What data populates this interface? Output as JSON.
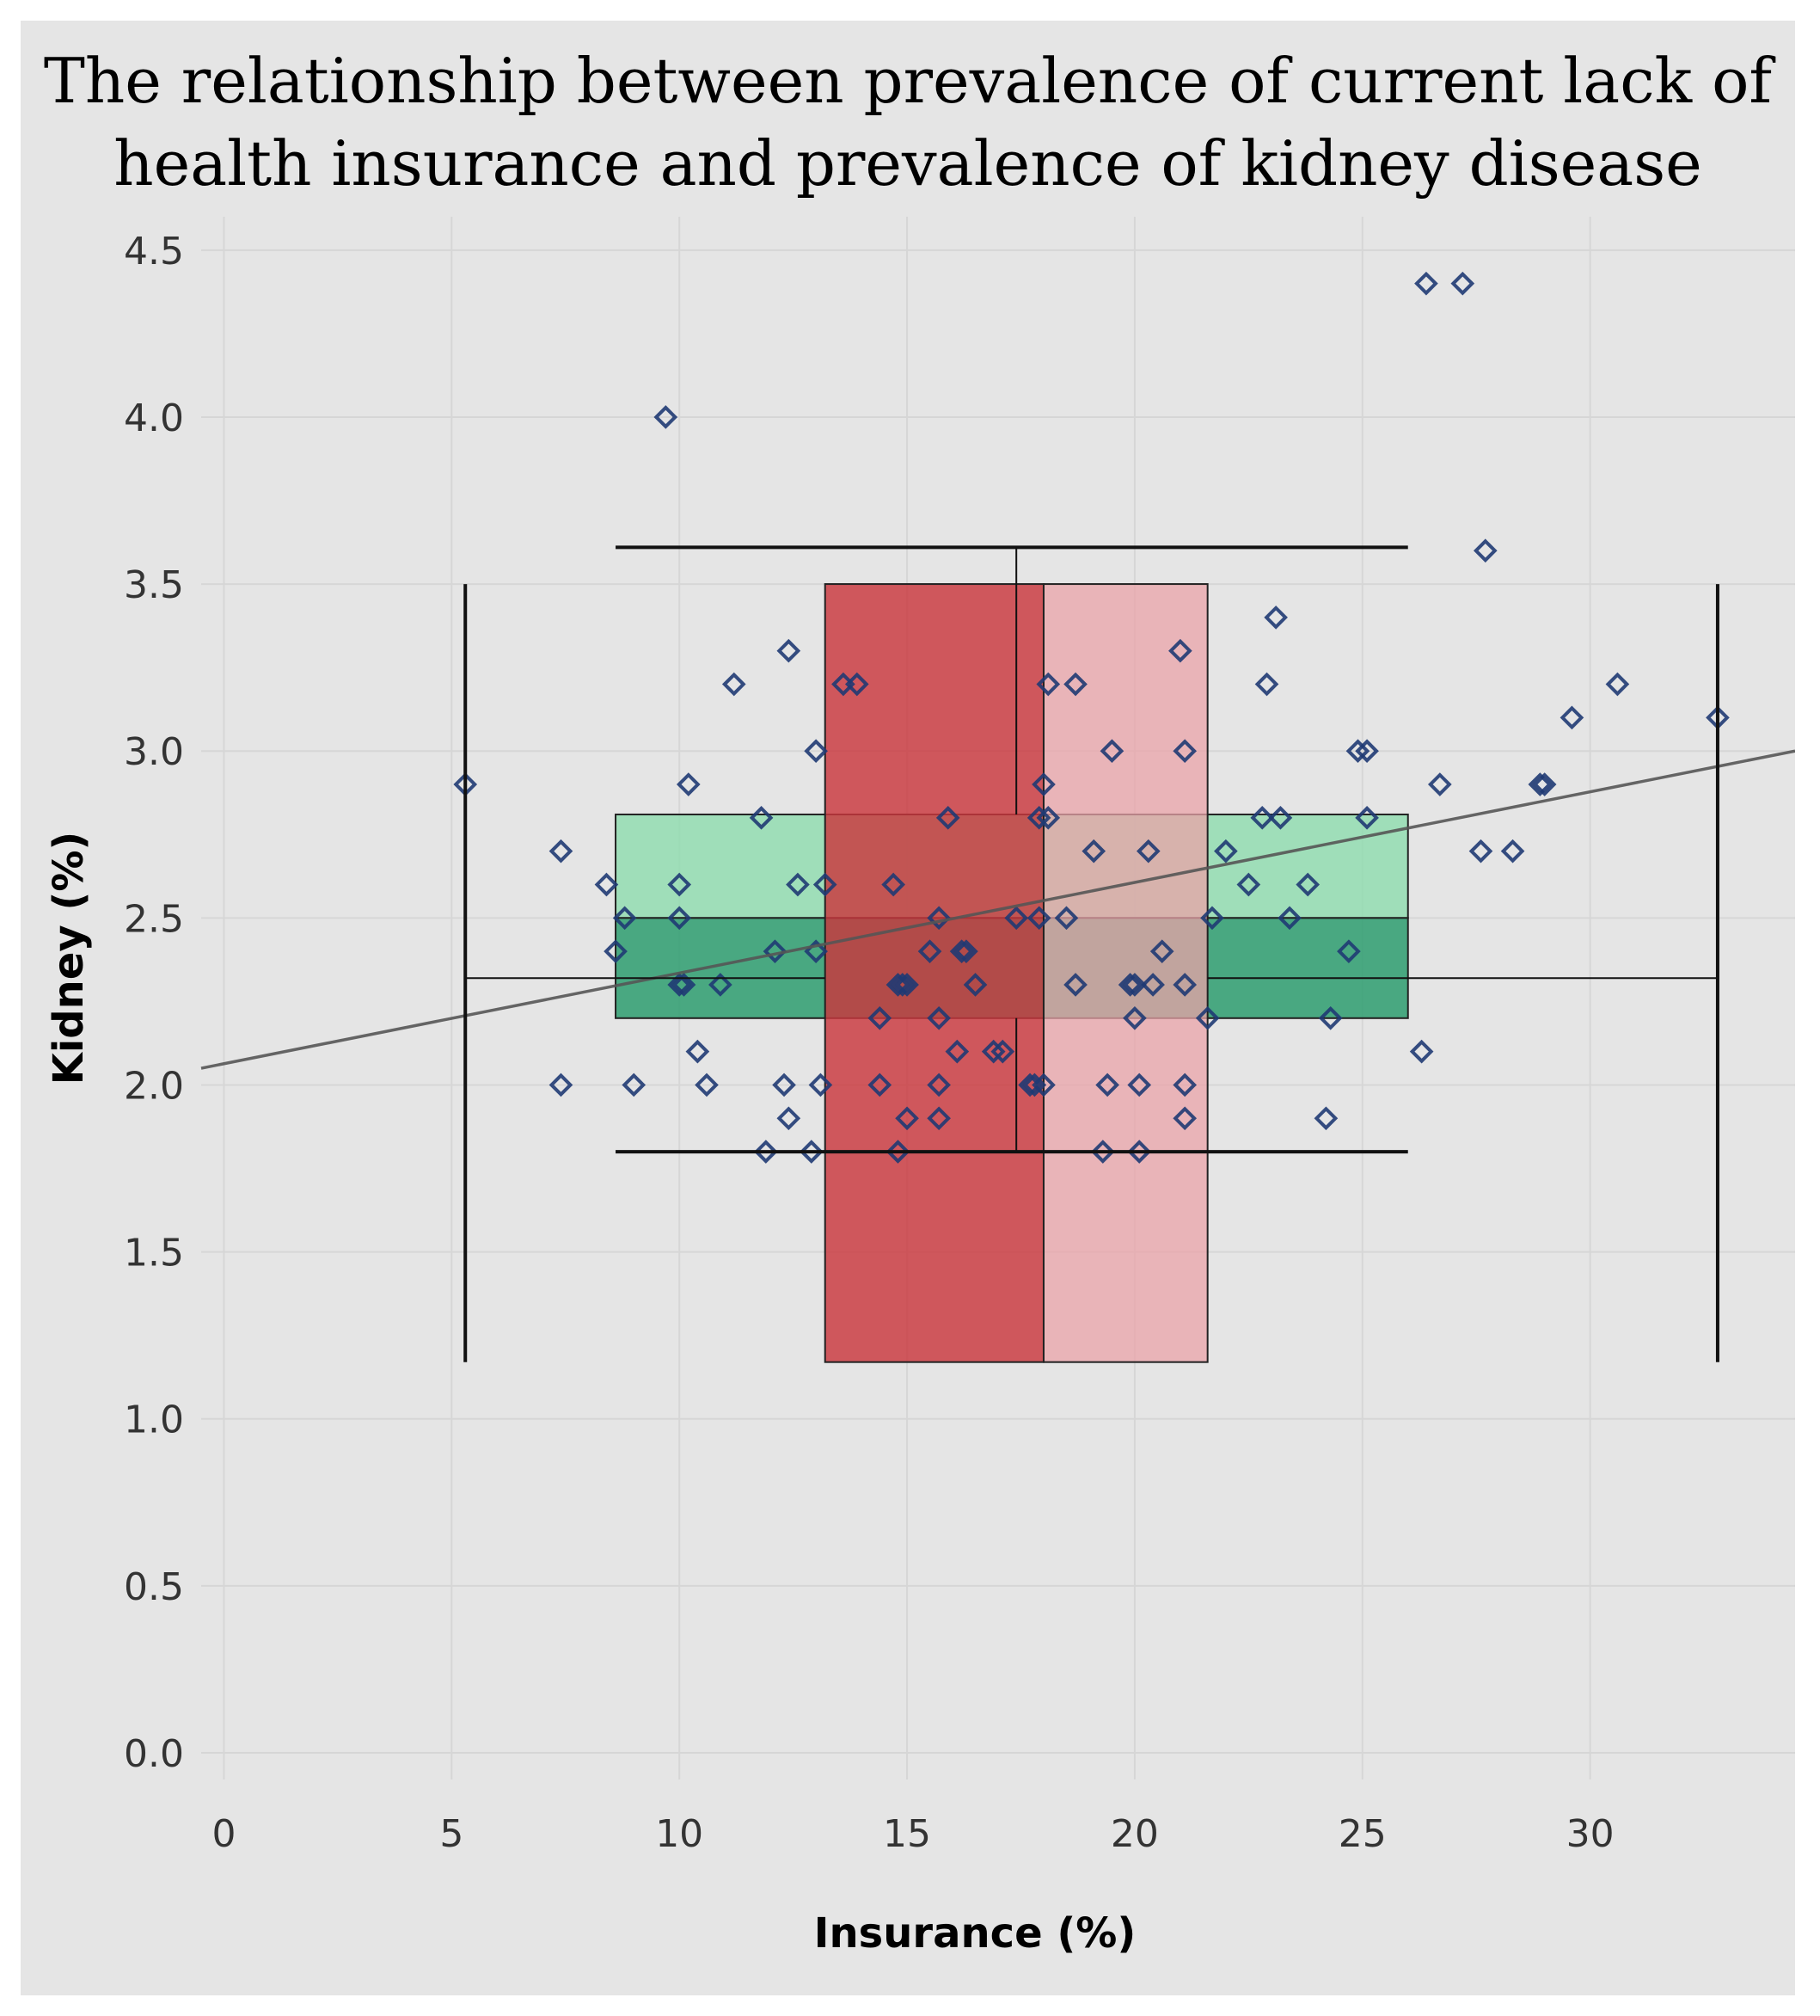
{
  "chart_data": {
    "type": "scatter",
    "title_line1": "The relationship between prevalence of current lack of",
    "title_line2": "health insurance and prevalence of kidney disease",
    "xlabel": "Insurance (%)",
    "ylabel": "Kidney (%)",
    "xlim": [
      -0.5,
      34.5
    ],
    "ylim": [
      -0.08,
      4.6
    ],
    "xticks": [
      0,
      5,
      10,
      15,
      20,
      25,
      30
    ],
    "xtick_labels": [
      "0",
      "5",
      "10",
      "15",
      "20",
      "25",
      "30"
    ],
    "yticks": [
      0,
      0.5,
      1,
      1.5,
      2,
      2.5,
      3,
      3.5,
      4,
      4.5
    ],
    "ytick_labels": [
      "0.0",
      "0.5",
      "1.0",
      "1.5",
      "2.0",
      "2.5",
      "3.0",
      "3.5",
      "4.0",
      "4.5"
    ],
    "grid": true,
    "colors": {
      "points": "#1f3a73",
      "trend": "#555555",
      "x_box_lower": "#c9373d",
      "x_box_upper": "#e9a3a8",
      "y_box_lower": "#2e9e70",
      "y_box_upper": "#8fdcae",
      "whisker": "#111111"
    },
    "trend_line": {
      "x": [
        -0.5,
        34.5
      ],
      "y": [
        2.05,
        3.0
      ]
    },
    "x_boxplot": {
      "min": 5.3,
      "q1": 13.2,
      "median": 18.0,
      "q3": 21.6,
      "max": 32.8,
      "y_bottom": 1.17,
      "y_top": 3.5,
      "y_center": 2.32
    },
    "y_boxplot": {
      "min": 1.8,
      "q1": 2.2,
      "median": 2.5,
      "q3": 2.81,
      "max": 3.61,
      "x_left": 8.6,
      "x_right": 26.0,
      "x_center": 17.4
    },
    "points": [
      [
        5.3,
        2.9
      ],
      [
        7.4,
        2.7
      ],
      [
        7.4,
        2.0
      ],
      [
        8.4,
        2.6
      ],
      [
        8.6,
        2.4
      ],
      [
        8.8,
        2.5
      ],
      [
        9.0,
        2.0
      ],
      [
        9.7,
        4.0
      ],
      [
        10.0,
        2.6
      ],
      [
        10.0,
        2.5
      ],
      [
        10.0,
        2.3
      ],
      [
        10.1,
        2.3
      ],
      [
        10.2,
        2.9
      ],
      [
        10.4,
        2.1
      ],
      [
        10.6,
        2.0
      ],
      [
        10.9,
        2.3
      ],
      [
        11.2,
        3.2
      ],
      [
        11.8,
        2.8
      ],
      [
        11.9,
        1.8
      ],
      [
        12.1,
        2.4
      ],
      [
        12.3,
        2.0
      ],
      [
        12.4,
        1.9
      ],
      [
        12.4,
        3.3
      ],
      [
        12.6,
        2.6
      ],
      [
        12.9,
        1.8
      ],
      [
        13.0,
        2.4
      ],
      [
        13.0,
        3.0
      ],
      [
        13.1,
        2.0
      ],
      [
        13.2,
        2.6
      ],
      [
        13.6,
        3.2
      ],
      [
        13.9,
        3.2
      ],
      [
        14.4,
        2.2
      ],
      [
        14.4,
        2.0
      ],
      [
        14.7,
        2.6
      ],
      [
        14.8,
        2.3
      ],
      [
        14.8,
        1.8
      ],
      [
        14.9,
        2.3
      ],
      [
        15.0,
        2.3
      ],
      [
        15.0,
        1.9
      ],
      [
        15.5,
        2.4
      ],
      [
        15.7,
        2.5
      ],
      [
        15.7,
        2.2
      ],
      [
        15.7,
        2.0
      ],
      [
        15.7,
        1.9
      ],
      [
        15.9,
        2.8
      ],
      [
        16.1,
        2.1
      ],
      [
        16.2,
        2.4
      ],
      [
        16.3,
        2.4
      ],
      [
        16.5,
        2.3
      ],
      [
        16.9,
        2.1
      ],
      [
        17.1,
        2.1
      ],
      [
        17.4,
        2.5
      ],
      [
        17.7,
        2.0
      ],
      [
        17.9,
        2.5
      ],
      [
        17.8,
        2.0
      ],
      [
        17.9,
        2.8
      ],
      [
        18.0,
        2.9
      ],
      [
        18.1,
        2.8
      ],
      [
        18.1,
        3.2
      ],
      [
        18.0,
        2.0
      ],
      [
        18.5,
        2.5
      ],
      [
        18.7,
        3.2
      ],
      [
        18.7,
        2.3
      ],
      [
        19.1,
        2.7
      ],
      [
        19.4,
        2.0
      ],
      [
        19.5,
        3.0
      ],
      [
        19.3,
        1.8
      ],
      [
        19.9,
        2.3
      ],
      [
        20.0,
        2.2
      ],
      [
        20.0,
        2.3
      ],
      [
        20.1,
        1.8
      ],
      [
        20.1,
        2.0
      ],
      [
        20.3,
        2.7
      ],
      [
        20.4,
        2.3
      ],
      [
        20.6,
        2.4
      ],
      [
        21.0,
        3.3
      ],
      [
        21.1,
        3.0
      ],
      [
        21.1,
        2.3
      ],
      [
        21.1,
        2.0
      ],
      [
        21.1,
        1.9
      ],
      [
        21.6,
        2.2
      ],
      [
        21.7,
        2.5
      ],
      [
        22.0,
        2.7
      ],
      [
        22.5,
        2.6
      ],
      [
        22.8,
        2.8
      ],
      [
        22.9,
        3.2
      ],
      [
        23.1,
        3.4
      ],
      [
        23.2,
        2.8
      ],
      [
        23.4,
        2.5
      ],
      [
        23.8,
        2.6
      ],
      [
        24.2,
        1.9
      ],
      [
        24.3,
        2.2
      ],
      [
        24.7,
        2.4
      ],
      [
        24.9,
        3.0
      ],
      [
        25.1,
        3.0
      ],
      [
        25.1,
        2.8
      ],
      [
        26.3,
        2.1
      ],
      [
        26.4,
        4.4
      ],
      [
        26.7,
        2.9
      ],
      [
        27.2,
        4.4
      ],
      [
        27.6,
        2.7
      ],
      [
        27.7,
        3.6
      ],
      [
        28.3,
        2.7
      ],
      [
        28.9,
        2.9
      ],
      [
        29.0,
        2.9
      ],
      [
        29.6,
        3.1
      ],
      [
        30.6,
        3.2
      ],
      [
        32.8,
        3.1
      ]
    ]
  }
}
